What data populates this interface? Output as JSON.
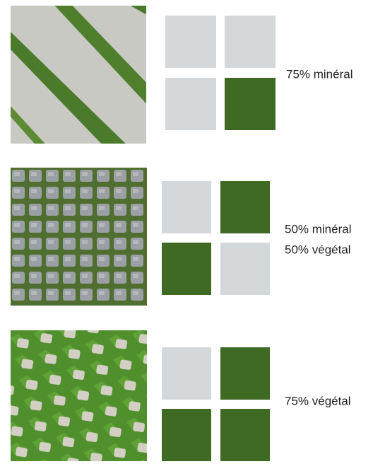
{
  "rows": [
    {
      "lines": [
        "75% minéral"
      ]
    },
    {
      "lines": [
        "50% minéral",
        "50% végétal"
      ]
    },
    {
      "lines": [
        "75% végétal"
      ]
    }
  ]
}
